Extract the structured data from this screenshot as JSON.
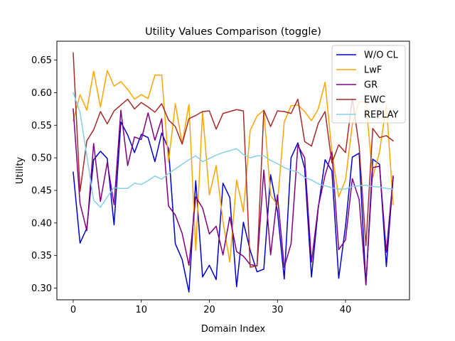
{
  "chart_data": {
    "type": "line",
    "title": "Utility Values Comparison (toggle)",
    "xlabel": "Domain Index",
    "ylabel": "Utility",
    "xlim": [
      -2.4,
      49.4
    ],
    "ylim": [
      0.282,
      0.679
    ],
    "xticks": [
      0,
      10,
      20,
      30,
      40
    ],
    "yticks": [
      0.3,
      0.35,
      0.4,
      0.45,
      0.5,
      0.55,
      0.6,
      0.65
    ],
    "ytick_labels": [
      "0.30",
      "0.35",
      "0.40",
      "0.45",
      "0.50",
      "0.55",
      "0.60",
      "0.65"
    ],
    "grid": false,
    "legend_position": "upper-right",
    "x": [
      0,
      1,
      2,
      3,
      4,
      5,
      6,
      7,
      8,
      9,
      10,
      11,
      12,
      13,
      14,
      15,
      16,
      17,
      18,
      19,
      20,
      21,
      22,
      23,
      24,
      25,
      26,
      27,
      28,
      29,
      30,
      31,
      32,
      33,
      34,
      35,
      36,
      37,
      38,
      39,
      40,
      41,
      42,
      43,
      44,
      45,
      46,
      47
    ],
    "series": [
      {
        "name": "W/O CL",
        "color": "#0000cd",
        "values": [
          0.478,
          0.369,
          0.392,
          0.497,
          0.51,
          0.499,
          0.397,
          0.555,
          0.535,
          0.508,
          0.536,
          0.531,
          0.494,
          0.538,
          0.514,
          0.368,
          0.344,
          0.294,
          0.465,
          0.317,
          0.335,
          0.313,
          0.461,
          0.439,
          0.302,
          0.401,
          0.358,
          0.325,
          0.329,
          0.474,
          0.418,
          0.314,
          0.5,
          0.523,
          0.484,
          0.317,
          0.423,
          0.497,
          0.48,
          0.315,
          0.395,
          0.501,
          0.507,
          0.305,
          0.498,
          0.49,
          0.333,
          0.47
        ]
      },
      {
        "name": "LwF",
        "color": "#ffa500",
        "values": [
          0.557,
          0.597,
          0.573,
          0.633,
          0.578,
          0.634,
          0.61,
          0.617,
          0.605,
          0.59,
          0.597,
          0.591,
          0.627,
          0.627,
          0.493,
          0.583,
          0.522,
          0.582,
          0.358,
          0.571,
          0.443,
          0.488,
          0.402,
          0.34,
          0.466,
          0.417,
          0.542,
          0.564,
          0.573,
          0.442,
          0.428,
          0.555,
          0.58,
          0.581,
          0.571,
          0.557,
          0.575,
          0.616,
          0.509,
          0.44,
          0.466,
          0.551,
          0.586,
          0.585,
          0.47,
          0.509,
          0.582,
          0.428
        ]
      },
      {
        "name": "GR",
        "color": "#800080",
        "values": [
          0.575,
          0.43,
          0.388,
          0.522,
          0.433,
          0.493,
          0.428,
          0.573,
          0.488,
          0.532,
          0.528,
          0.569,
          0.527,
          0.56,
          0.426,
          0.412,
          0.384,
          0.335,
          0.44,
          0.423,
          0.383,
          0.395,
          0.351,
          0.409,
          0.356,
          0.349,
          0.336,
          0.334,
          0.481,
          0.351,
          0.443,
          0.332,
          0.368,
          0.519,
          0.5,
          0.34,
          0.425,
          0.473,
          0.509,
          0.359,
          0.374,
          0.468,
          0.436,
          0.305,
          0.485,
          0.487,
          0.355,
          0.472
        ]
      },
      {
        "name": "EWC",
        "color": "#a52a2a",
        "values": [
          0.661,
          0.448,
          0.526,
          0.543,
          0.571,
          0.552,
          0.572,
          0.581,
          0.59,
          0.575,
          0.585,
          0.578,
          0.57,
          0.583,
          0.558,
          0.548,
          0.521,
          0.56,
          0.565,
          0.571,
          0.572,
          0.544,
          0.568,
          0.571,
          0.574,
          0.572,
          0.332,
          0.334,
          0.573,
          0.548,
          0.572,
          0.571,
          0.568,
          0.59,
          0.525,
          0.518,
          0.553,
          0.571,
          0.492,
          0.52,
          0.508,
          0.591,
          0.518,
          0.365,
          0.545,
          0.531,
          0.534,
          0.526
        ]
      },
      {
        "name": "REPLAY",
        "color": "#87ceeb",
        "values": [
          0.6,
          0.57,
          0.503,
          0.435,
          0.424,
          0.44,
          0.454,
          0.453,
          0.453,
          0.461,
          0.459,
          0.465,
          0.472,
          0.467,
          0.476,
          0.483,
          0.49,
          0.497,
          0.503,
          0.494,
          0.499,
          0.504,
          0.508,
          0.511,
          0.514,
          0.505,
          0.5,
          0.503,
          0.503,
          0.496,
          0.491,
          0.485,
          0.481,
          0.478,
          0.47,
          0.466,
          0.46,
          0.457,
          0.454,
          0.452,
          0.452,
          0.456,
          0.457,
          0.458,
          0.456,
          0.455,
          0.453,
          0.452
        ]
      }
    ]
  }
}
